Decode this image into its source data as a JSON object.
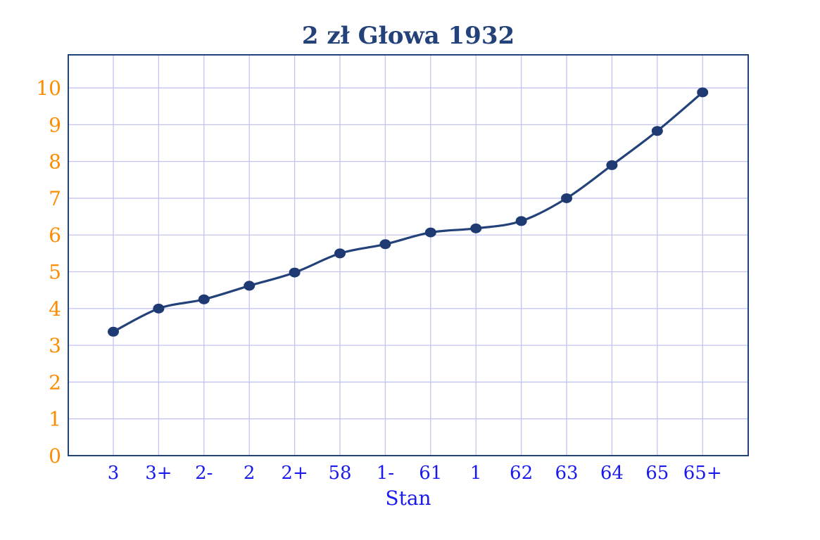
{
  "chart_data": {
    "type": "line",
    "title": "2 zł Głowa 1932",
    "xlabel": "Stan",
    "ylabel": "",
    "categories": [
      "3",
      "3+",
      "2-",
      "2",
      "2+",
      "58",
      "1-",
      "61",
      "1",
      "62",
      "63",
      "64",
      "65",
      "65+"
    ],
    "series": [
      {
        "values": [
          3.37,
          4.0,
          4.25,
          4.62,
          4.98,
          5.5,
          5.75,
          6.07,
          6.18,
          6.38,
          7.0,
          7.9,
          8.83,
          9.88
        ]
      }
    ],
    "ylim": [
      0,
      10.9
    ],
    "yticks": [
      0,
      1,
      2,
      3,
      4,
      5,
      6,
      7,
      8,
      9,
      10
    ],
    "grid": true,
    "legend": "none"
  },
  "colors": {
    "title": "#24427a",
    "series_line": "#24427a",
    "marker": "#1f3a73",
    "axes_frame": "#24427a",
    "grid": "#c4c4f2",
    "ytick": "#ff8c00",
    "xtick": "#1a1aee",
    "xlabel": "#1a1aee"
  }
}
